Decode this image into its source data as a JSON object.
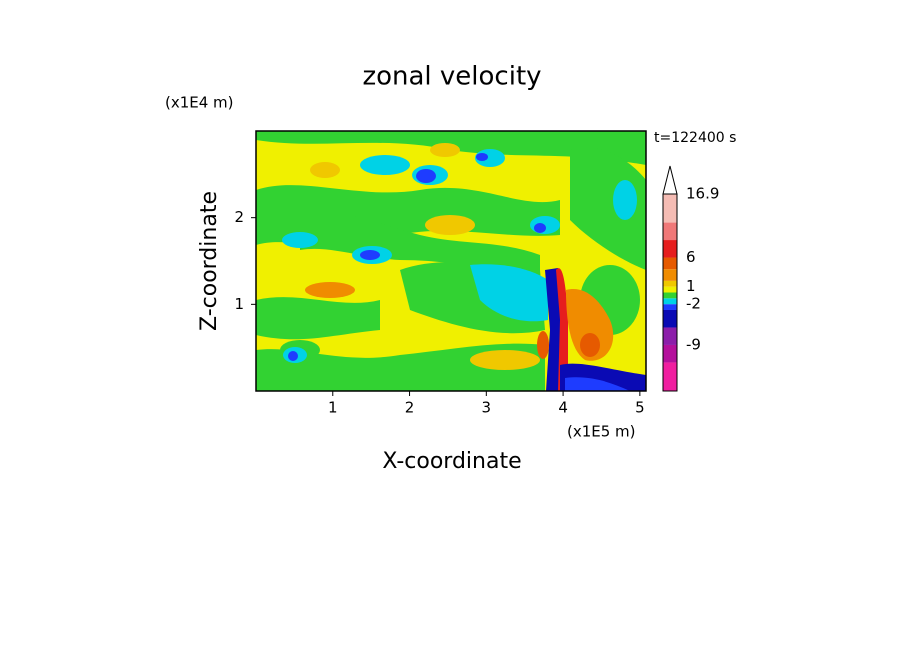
{
  "chart_data": {
    "type": "contour",
    "title": "zonal velocity",
    "x_label": "X-coordinate",
    "y_label": "Z-coordinate",
    "x_unit": "(x1E5 m)",
    "y_unit": "(x1E4 m)",
    "annotation": "t=122400 s",
    "xlim": [
      0,
      5.08
    ],
    "ylim": [
      0,
      3
    ],
    "xticks": [
      1,
      2,
      3,
      4,
      5
    ],
    "yticks": [
      1,
      2
    ],
    "colorbar": {
      "lim": [
        -16.9,
        16.9
      ],
      "levels": [
        -12,
        -9,
        -6,
        -3,
        -2,
        -1,
        0,
        1,
        2,
        4,
        6,
        9,
        12
      ],
      "colors": [
        "#f01ea0",
        "#b4109c",
        "#8c1eaa",
        "#0a0ab4",
        "#1e3cff",
        "#00d2e6",
        "#32d232",
        "#f0f000",
        "#f0c800",
        "#f08c00",
        "#e65a00",
        "#e61e1e",
        "#f07878",
        "#f5bcb4"
      ],
      "ticks": [
        16.9,
        6,
        1,
        -2,
        -9
      ]
    }
  }
}
